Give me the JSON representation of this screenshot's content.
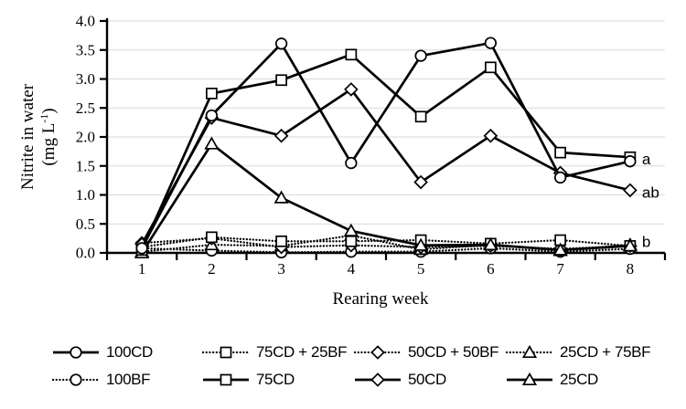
{
  "chart_data": {
    "type": "line",
    "title": "",
    "xlabel": "Rearing week",
    "ylabel": "Nitrite in water",
    "ylabel_units": {
      "prefix": "(mg L",
      "sup": "-1",
      "suffix": ")"
    },
    "x": [
      1,
      2,
      3,
      4,
      5,
      6,
      7,
      8
    ],
    "xticks": [
      "1",
      "2",
      "3",
      "4",
      "5",
      "6",
      "7",
      "8"
    ],
    "yticks": [
      "0.0",
      "0.5",
      "1.0",
      "1.5",
      "2.0",
      "2.5",
      "3.0",
      "3.5",
      "4.0"
    ],
    "ylim": [
      0,
      4
    ],
    "ytick_step": 0.5,
    "grid": "horizontal",
    "legend_position": "bottom",
    "series": [
      {
        "name": "100CD",
        "marker": "circle",
        "line": "solid",
        "values": [
          0.08,
          2.37,
          3.61,
          1.55,
          3.4,
          3.62,
          1.3,
          1.58
        ]
      },
      {
        "name": "75CD + 25BF",
        "marker": "square",
        "line": "dotted",
        "values": [
          0.1,
          0.27,
          0.2,
          0.2,
          0.22,
          0.16,
          0.22,
          0.12
        ]
      },
      {
        "name": "50CD + 50BF",
        "marker": "diamond",
        "line": "dotted",
        "values": [
          0.17,
          0.25,
          0.1,
          0.13,
          0.1,
          0.12,
          0.07,
          0.12
        ]
      },
      {
        "name": "25CD + 75BF",
        "marker": "triangle",
        "line": "dotted",
        "values": [
          0.02,
          0.14,
          0.12,
          0.3,
          0.06,
          0.14,
          0.04,
          0.14
        ]
      },
      {
        "name": "100BF",
        "marker": "circle",
        "line": "dotted",
        "values": [
          0.08,
          0.04,
          0.01,
          0.02,
          0.02,
          0.08,
          0.02,
          0.07
        ]
      },
      {
        "name": "75CD",
        "marker": "square",
        "line": "solid",
        "values": [
          0.05,
          2.75,
          2.98,
          3.42,
          2.35,
          3.2,
          1.73,
          1.65
        ]
      },
      {
        "name": "50CD",
        "marker": "diamond",
        "line": "solid",
        "values": [
          0.15,
          2.33,
          2.02,
          2.82,
          1.22,
          2.02,
          1.38,
          1.08
        ]
      },
      {
        "name": "25CD",
        "marker": "triangle",
        "line": "solid",
        "values": [
          0.0,
          1.88,
          0.95,
          0.38,
          0.13,
          0.14,
          0.05,
          0.12
        ]
      }
    ],
    "draw_order": [
      4,
      3,
      2,
      1,
      7,
      6,
      5,
      0
    ],
    "annotations": [
      {
        "text": "a",
        "week": 8,
        "value": 1.62
      },
      {
        "text": "ab",
        "week": 8,
        "value": 1.05
      },
      {
        "text": "b",
        "week": 8,
        "value": 0.2
      }
    ],
    "legend_rows": [
      [
        0,
        1,
        2,
        3
      ],
      [
        4,
        5,
        6,
        7
      ]
    ]
  },
  "colors": {
    "line": "#000000",
    "grid": "#d9d9d9",
    "marker_fill": "#ffffff",
    "background": "#ffffff",
    "text": "#000000"
  }
}
